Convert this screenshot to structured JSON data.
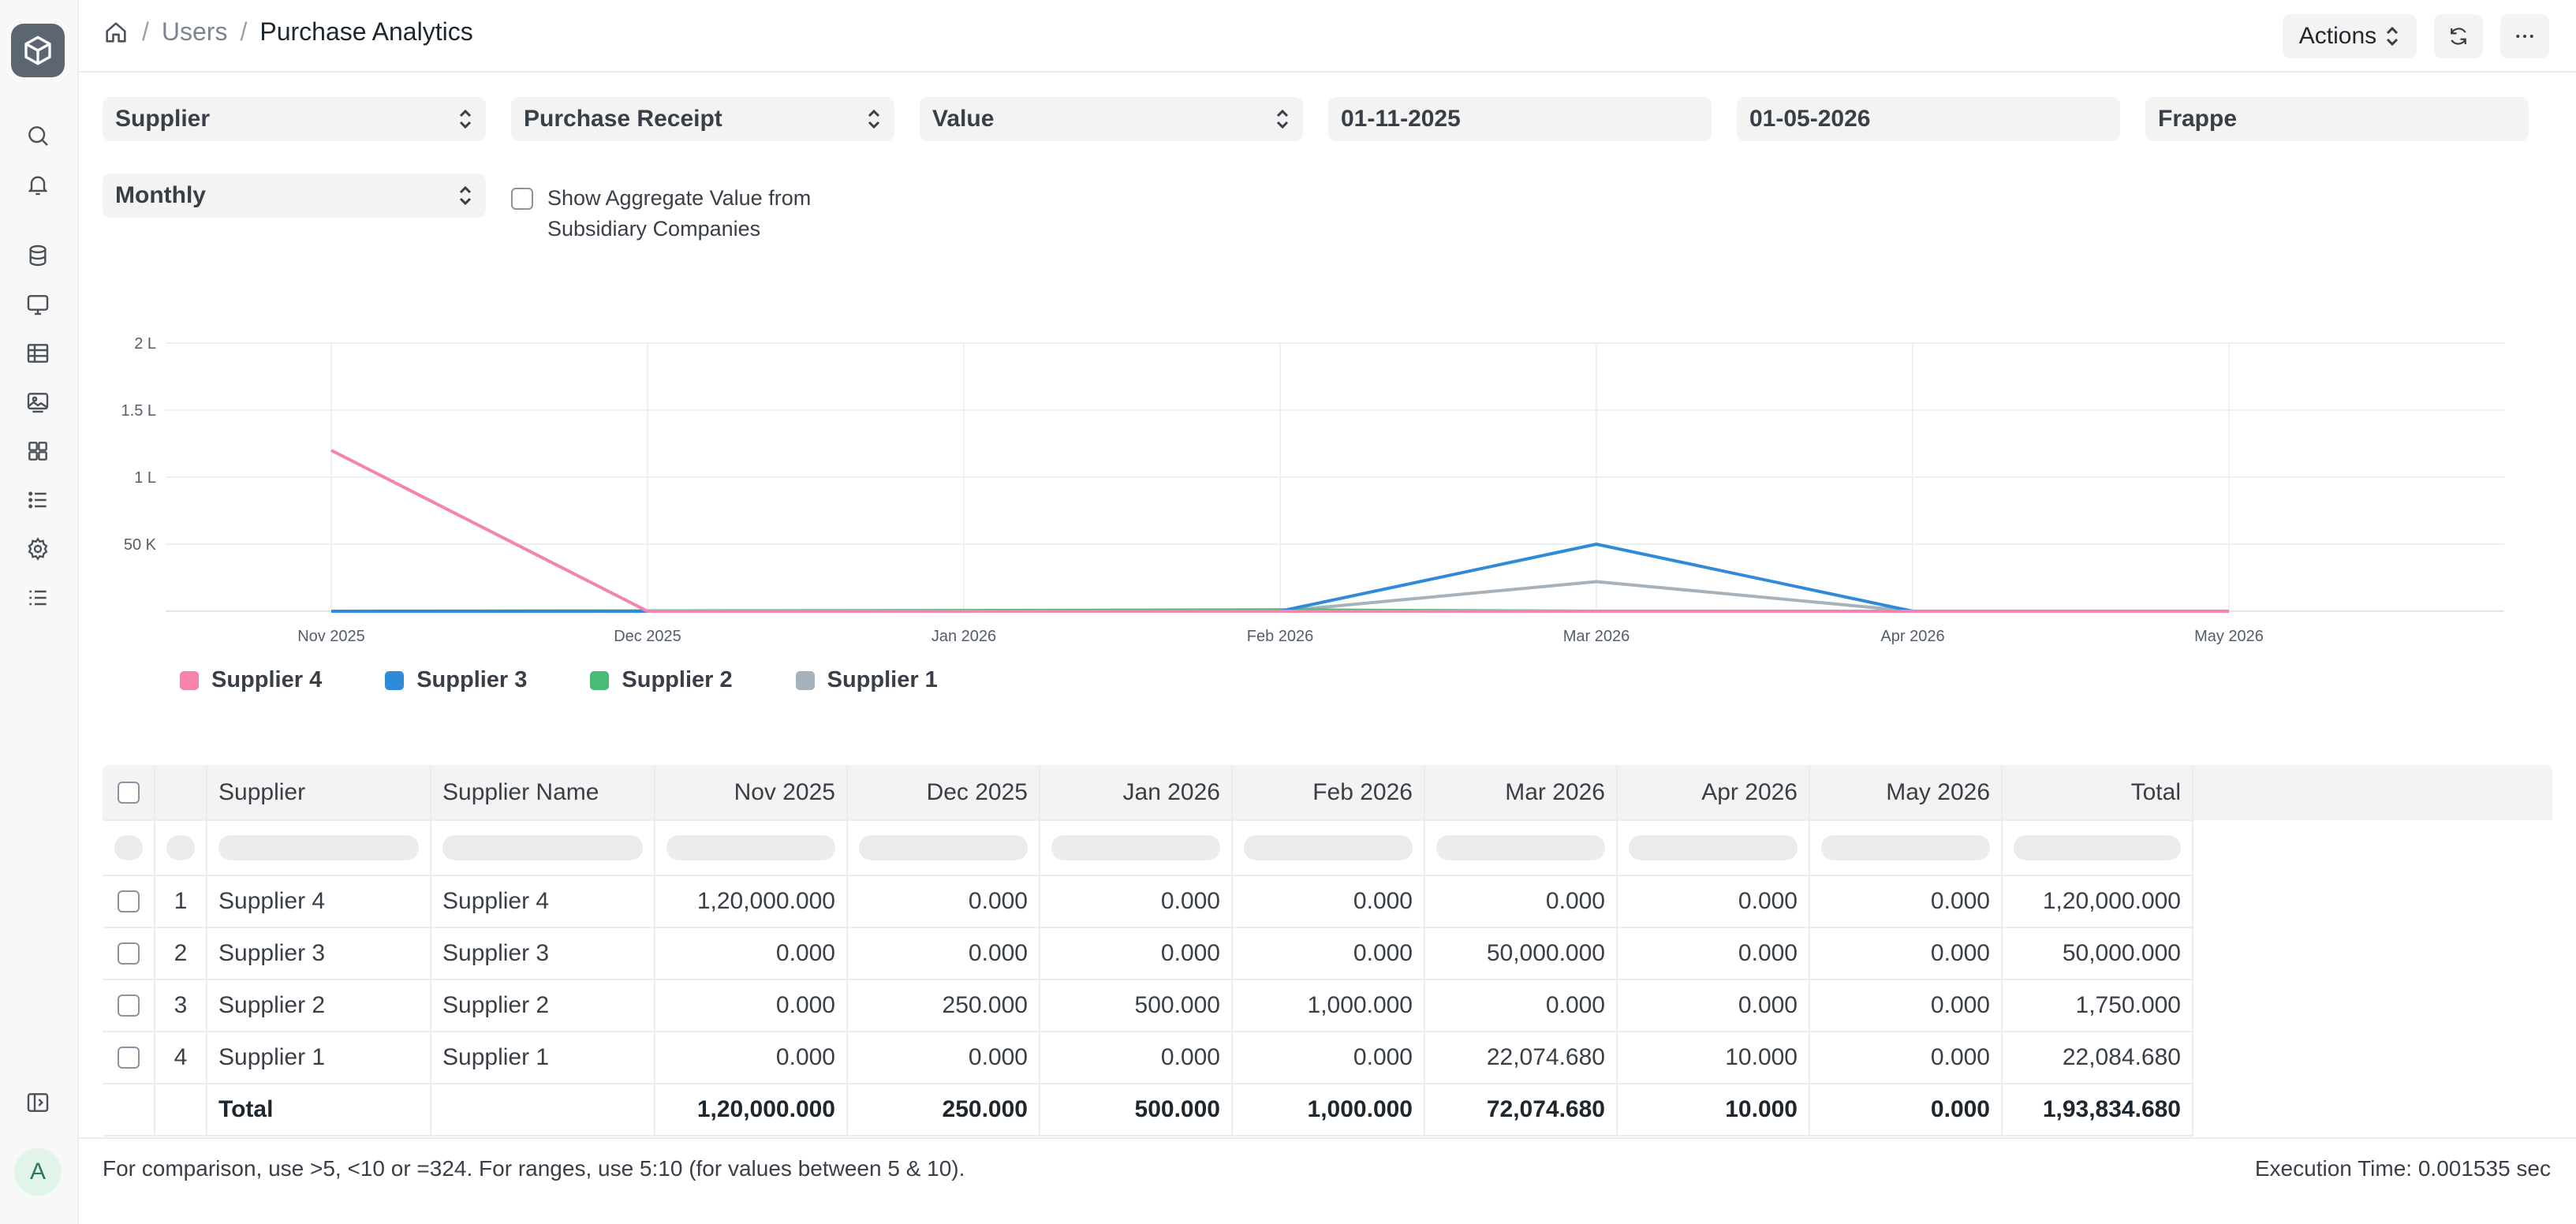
{
  "breadcrumb": {
    "parent": "Users",
    "current": "Purchase Analytics",
    "sep": "/"
  },
  "header": {
    "actions_label": "Actions"
  },
  "filters": {
    "tree_type": "Supplier",
    "doc_type": "Purchase Receipt",
    "value_quantity": "Value",
    "from_date": "01-11-2025",
    "to_date": "01-05-2026",
    "company": "Frappe",
    "range": "Monthly",
    "show_aggregate_label": "Show Aggregate Value from Subsidiary Companies"
  },
  "icons": {
    "sidebar": [
      "search-icon",
      "bell-icon",
      "database-icon",
      "monitor-icon",
      "table-icon",
      "image-icon",
      "grid-icon",
      "list-icon",
      "gear-icon",
      "list-check-icon"
    ],
    "header": [
      "home-icon",
      "refresh-icon",
      "more-icon"
    ]
  },
  "colors": {
    "Supplier 4": "#f683ae",
    "Supplier 3": "#318ad8",
    "Supplier 2": "#48bb74",
    "Supplier 1": "#a6b1b9"
  },
  "chart_data": {
    "type": "line",
    "x": [
      "Nov 2025",
      "Dec 2025",
      "Jan 2026",
      "Feb 2026",
      "Mar 2026",
      "Apr 2026",
      "May 2026"
    ],
    "ylim": [
      0,
      200000
    ],
    "ytick_values": [
      50000,
      100000,
      150000,
      200000
    ],
    "ytick_labels": [
      "50 K",
      "1 L",
      "1.5 L",
      "2 L"
    ],
    "grid": true,
    "legend_position": "bottom-left",
    "series": [
      {
        "name": "Supplier 4",
        "color": "#f683ae",
        "values": [
          120000,
          0,
          0,
          0,
          0,
          0,
          0
        ]
      },
      {
        "name": "Supplier 3",
        "color": "#318ad8",
        "values": [
          0,
          0,
          0,
          0,
          50000,
          0,
          0
        ]
      },
      {
        "name": "Supplier 2",
        "color": "#48bb74",
        "values": [
          0,
          250,
          500,
          1000,
          0,
          0,
          0
        ]
      },
      {
        "name": "Supplier 1",
        "color": "#a6b1b9",
        "values": [
          0,
          0,
          0,
          0,
          22074.68,
          10,
          0
        ]
      }
    ]
  },
  "legend": [
    {
      "name": "Supplier 4",
      "color": "#f683ae"
    },
    {
      "name": "Supplier 3",
      "color": "#318ad8"
    },
    {
      "name": "Supplier 2",
      "color": "#48bb74"
    },
    {
      "name": "Supplier 1",
      "color": "#a6b1b9"
    }
  ],
  "table": {
    "columns": [
      "Supplier",
      "Supplier Name",
      "Nov 2025",
      "Dec 2025",
      "Jan 2026",
      "Feb 2026",
      "Mar 2026",
      "Apr 2026",
      "May 2026",
      "Total"
    ],
    "rows": [
      {
        "idx": "1",
        "cells": [
          "Supplier 4",
          "Supplier 4",
          "1,20,000.000",
          "0.000",
          "0.000",
          "0.000",
          "0.000",
          "0.000",
          "0.000",
          "1,20,000.000"
        ]
      },
      {
        "idx": "2",
        "cells": [
          "Supplier 3",
          "Supplier 3",
          "0.000",
          "0.000",
          "0.000",
          "0.000",
          "50,000.000",
          "0.000",
          "0.000",
          "50,000.000"
        ]
      },
      {
        "idx": "3",
        "cells": [
          "Supplier 2",
          "Supplier 2",
          "0.000",
          "250.000",
          "500.000",
          "1,000.000",
          "0.000",
          "0.000",
          "0.000",
          "1,750.000"
        ]
      },
      {
        "idx": "4",
        "cells": [
          "Supplier 1",
          "Supplier 1",
          "0.000",
          "0.000",
          "0.000",
          "0.000",
          "22,074.680",
          "10.000",
          "0.000",
          "22,084.680"
        ]
      }
    ],
    "total_row": [
      "Total",
      "",
      "1,20,000.000",
      "250.000",
      "500.000",
      "1,000.000",
      "72,074.680",
      "10.000",
      "0.000",
      "1,93,834.680"
    ]
  },
  "footer": {
    "hint": "For comparison, use >5, <10 or =324. For ranges, use 5:10 (for values between 5 & 10).",
    "execution_time": "Execution Time: 0.001535 sec"
  },
  "user": {
    "avatar_initial": "A"
  }
}
